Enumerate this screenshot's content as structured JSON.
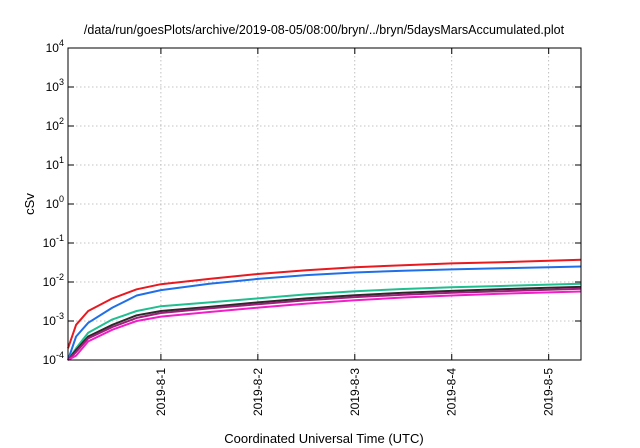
{
  "chart_data": {
    "type": "line",
    "title": "/data/run/goesPlots/archive/2019-08-05/08:00/bryn/../bryn/5daysMarsAccumulated.plot",
    "xlabel": "Coordinated Universal Time (UTC)",
    "ylabel": "cSv",
    "x_scale": "time",
    "y_scale": "log",
    "xlim": [
      "2019-07-31 01:00",
      "2019-08-05 08:00"
    ],
    "ylim": [
      0.0001,
      10000
    ],
    "grid": true,
    "legend": "none",
    "x_ticks": [
      {
        "value": "2019-08-01 00:00",
        "label": "2019-8-1"
      },
      {
        "value": "2019-08-02 00:00",
        "label": "2019-8-2"
      },
      {
        "value": "2019-08-03 00:00",
        "label": "2019-8-3"
      },
      {
        "value": "2019-08-04 00:00",
        "label": "2019-8-4"
      },
      {
        "value": "2019-08-05 00:00",
        "label": "2019-8-5"
      }
    ],
    "y_ticks": [
      {
        "value": 0.0001,
        "base": "10",
        "exp": "-4"
      },
      {
        "value": 0.001,
        "base": "10",
        "exp": "-3"
      },
      {
        "value": 0.01,
        "base": "10",
        "exp": "-2"
      },
      {
        "value": 0.1,
        "base": "10",
        "exp": "-1"
      },
      {
        "value": 1,
        "base": "10",
        "exp": "0"
      },
      {
        "value": 10,
        "base": "10",
        "exp": "1"
      },
      {
        "value": 100,
        "base": "10",
        "exp": "2"
      },
      {
        "value": 1000,
        "base": "10",
        "exp": "3"
      },
      {
        "value": 10000,
        "base": "10",
        "exp": "4"
      }
    ],
    "x": [
      "2019-07-31 01:00",
      "2019-07-31 03:00",
      "2019-07-31 06:00",
      "2019-07-31 12:00",
      "2019-07-31 18:00",
      "2019-08-01 00:00",
      "2019-08-01 12:00",
      "2019-08-02 00:00",
      "2019-08-02 12:00",
      "2019-08-03 00:00",
      "2019-08-03 12:00",
      "2019-08-04 00:00",
      "2019-08-04 12:00",
      "2019-08-05 00:00",
      "2019-08-05 08:00"
    ],
    "series": [
      {
        "color": "#e8191f",
        "values": [
          0.0002,
          0.0008,
          0.0018,
          0.0038,
          0.0065,
          0.0088,
          0.012,
          0.016,
          0.02,
          0.024,
          0.027,
          0.03,
          0.032,
          0.035,
          0.037
        ]
      },
      {
        "color": "#1f6fe8",
        "values": [
          0.0001,
          0.0004,
          0.0009,
          0.0022,
          0.0045,
          0.0062,
          0.009,
          0.012,
          0.015,
          0.0175,
          0.0195,
          0.021,
          0.0225,
          0.024,
          0.025
        ]
      },
      {
        "color": "#1fbf8f",
        "values": [
          0.0001,
          0.0002,
          0.0005,
          0.0011,
          0.0018,
          0.0024,
          0.003,
          0.0038,
          0.0048,
          0.0058,
          0.0066,
          0.0073,
          0.0079,
          0.0086,
          0.009
        ]
      },
      {
        "color": "#2a2a2a",
        "values": [
          0.0001,
          0.00018,
          0.0004,
          0.0008,
          0.0014,
          0.0018,
          0.0023,
          0.003,
          0.0038,
          0.0046,
          0.0053,
          0.0059,
          0.0065,
          0.0071,
          0.0075
        ]
      },
      {
        "color": "#9e1f7a",
        "values": [
          0.0001,
          0.00016,
          0.00036,
          0.0007,
          0.0012,
          0.0016,
          0.0021,
          0.0027,
          0.0034,
          0.0041,
          0.0047,
          0.0053,
          0.0058,
          0.0063,
          0.0067
        ]
      },
      {
        "color": "#f01fc8",
        "values": [
          0.0001,
          0.00013,
          0.0003,
          0.0006,
          0.001,
          0.0013,
          0.0017,
          0.0022,
          0.0028,
          0.0034,
          0.004,
          0.0045,
          0.005,
          0.0054,
          0.0057
        ]
      }
    ]
  }
}
